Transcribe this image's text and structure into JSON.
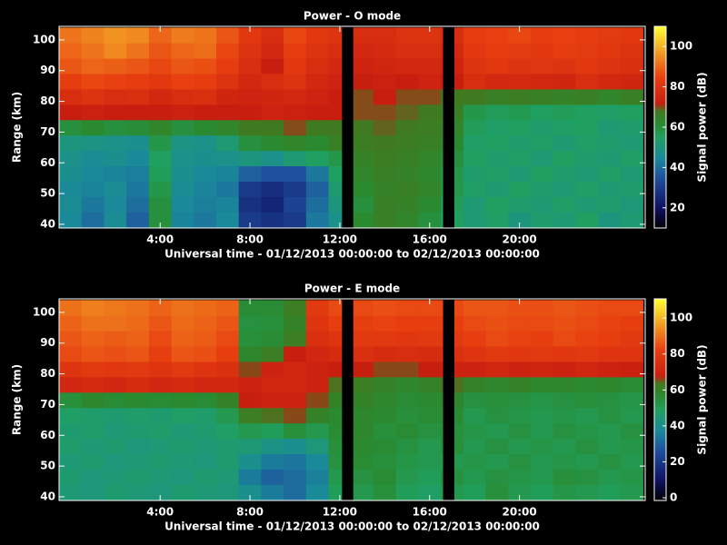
{
  "chart_data": [
    {
      "type": "heatmap",
      "title": "Power - O mode",
      "ylabel": "Range (km)",
      "xlabel": "Universal time - 01/12/2013 00:00:00 to 02/12/2013 00:00:00",
      "zlabel": "Signal power (dB)",
      "xlim": [
        -0.5,
        25.6
      ],
      "ylim": [
        38.8,
        104.4
      ],
      "zlim": [
        10,
        110
      ],
      "xticks": [
        {
          "value": 4,
          "label": "4:00"
        },
        {
          "value": 8,
          "label": "8:00"
        },
        {
          "value": 12,
          "label": "12:00"
        },
        {
          "value": 16,
          "label": "16:00"
        },
        {
          "value": 20,
          "label": "20:00"
        }
      ],
      "yticks": [
        40,
        50,
        60,
        70,
        80,
        90,
        100
      ],
      "zticks": [
        20,
        40,
        60,
        80,
        100
      ],
      "xbins": [
        -0.5,
        0.5,
        1.5,
        2.5,
        3.5,
        4.5,
        5.5,
        6.5,
        7.5,
        8.5,
        9.5,
        10.5,
        11.5,
        12.5,
        13.5,
        14.5,
        15.5,
        16.5,
        17.5,
        18.5,
        19.5,
        20.5,
        21.5,
        22.5,
        23.5,
        24.5,
        25.5
      ],
      "ybins": [
        39,
        44,
        49,
        54,
        59,
        64,
        69,
        74,
        79,
        84,
        89,
        94,
        99,
        104
      ],
      "gaps": [
        [
          12.1,
          12.6
        ],
        [
          16.6,
          17.1
        ]
      ],
      "colormap": [
        {
          "at": 0,
          "color": "#000000"
        },
        {
          "at": 0.1,
          "color": "#101060"
        },
        {
          "at": 0.25,
          "color": "#1f4f9f"
        },
        {
          "at": 0.35,
          "color": "#1a8a9a"
        },
        {
          "at": 0.45,
          "color": "#20a060"
        },
        {
          "at": 0.52,
          "color": "#2a8a30"
        },
        {
          "at": 0.58,
          "color": "#407a20"
        },
        {
          "at": 0.62,
          "color": "#c81e10"
        },
        {
          "at": 0.75,
          "color": "#e84010"
        },
        {
          "at": 0.85,
          "color": "#f08a20"
        },
        {
          "at": 1,
          "color": "#ffff30"
        }
      ],
      "z": [
        [
          45,
          40,
          46,
          38,
          60,
          44,
          42,
          45,
          30,
          28,
          30,
          42,
          48,
          62,
          66,
          64,
          60,
          55,
          52,
          54,
          50,
          53,
          52,
          55,
          50,
          52
        ],
        [
          46,
          42,
          45,
          40,
          60,
          45,
          43,
          44,
          28,
          25,
          32,
          40,
          50,
          60,
          66,
          65,
          62,
          56,
          52,
          55,
          53,
          52,
          54,
          52,
          53,
          51
        ],
        [
          45,
          44,
          46,
          42,
          58,
          46,
          44,
          42,
          30,
          27,
          30,
          38,
          52,
          62,
          65,
          66,
          64,
          58,
          54,
          52,
          55,
          53,
          52,
          54,
          52,
          53
        ],
        [
          47,
          45,
          44,
          43,
          56,
          47,
          45,
          44,
          38,
          35,
          35,
          42,
          55,
          64,
          66,
          65,
          63,
          58,
          53,
          54,
          52,
          55,
          53,
          52,
          54,
          52
        ],
        [
          48,
          46,
          47,
          45,
          55,
          48,
          47,
          48,
          50,
          48,
          52,
          55,
          58,
          65,
          67,
          66,
          64,
          60,
          55,
          53,
          54,
          52,
          55,
          53,
          52,
          54
        ],
        [
          50,
          49,
          48,
          47,
          58,
          49,
          48,
          52,
          60,
          62,
          64,
          62,
          66,
          67,
          68,
          67,
          66,
          62,
          54,
          55,
          53,
          54,
          52,
          54,
          53,
          52
        ],
        [
          60,
          62,
          60,
          61,
          64,
          60,
          62,
          64,
          68,
          68,
          70,
          68,
          68,
          68,
          69,
          68,
          67,
          64,
          56,
          54,
          55,
          53,
          54,
          55,
          52,
          53
        ],
        [
          72,
          73,
          72,
          72,
          72,
          73,
          72,
          72,
          72,
          74,
          73,
          72,
          72,
          70,
          70,
          69,
          68,
          66,
          58,
          56,
          57,
          55,
          56,
          55,
          54,
          55
        ],
        [
          78,
          80,
          78,
          79,
          76,
          78,
          79,
          75,
          74,
          75,
          76,
          74,
          72,
          70,
          72,
          70,
          70,
          68,
          68,
          66,
          67,
          66,
          65,
          66,
          64,
          66
        ],
        [
          84,
          86,
          85,
          84,
          82,
          85,
          84,
          80,
          76,
          78,
          80,
          76,
          74,
          72,
          73,
          72,
          74,
          72,
          78,
          76,
          77,
          76,
          75,
          78,
          76,
          75
        ],
        [
          88,
          90,
          89,
          88,
          86,
          88,
          87,
          84,
          78,
          72,
          82,
          78,
          76,
          74,
          75,
          76,
          76,
          74,
          80,
          82,
          80,
          81,
          80,
          82,
          80,
          79
        ],
        [
          90,
          92,
          95,
          92,
          88,
          90,
          91,
          86,
          80,
          76,
          84,
          80,
          78,
          76,
          77,
          78,
          78,
          76,
          82,
          84,
          83,
          82,
          84,
          83,
          82,
          80
        ],
        [
          92,
          94,
          96,
          95,
          90,
          93,
          92,
          88,
          82,
          78,
          86,
          82,
          80,
          78,
          78,
          80,
          80,
          78,
          84,
          85,
          86,
          84,
          85,
          84,
          83,
          82
        ]
      ]
    },
    {
      "type": "heatmap",
      "title": "Power - E mode",
      "ylabel": "Range (km)",
      "xlabel": "Universal time - 01/12/2013 00:00:00 to 02/12/2013 00:00:00",
      "zlabel": "Signal power (dB)",
      "xlim": [
        -0.5,
        25.6
      ],
      "ylim": [
        38.8,
        104.4
      ],
      "zlim": [
        -1.5,
        110.7
      ],
      "xticks": [
        {
          "value": 4,
          "label": "4:00"
        },
        {
          "value": 8,
          "label": "8:00"
        },
        {
          "value": 12,
          "label": "12:00"
        },
        {
          "value": 16,
          "label": "16:00"
        },
        {
          "value": 20,
          "label": "20:00"
        }
      ],
      "yticks": [
        40,
        50,
        60,
        70,
        80,
        90,
        100
      ],
      "zticks": [
        0,
        20,
        40,
        60,
        80,
        100
      ],
      "xbins": [
        -0.5,
        0.5,
        1.5,
        2.5,
        3.5,
        4.5,
        5.5,
        6.5,
        7.5,
        8.5,
        9.5,
        10.5,
        11.5,
        12.5,
        13.5,
        14.5,
        15.5,
        16.5,
        17.5,
        18.5,
        19.5,
        20.5,
        21.5,
        22.5,
        23.5,
        24.5,
        25.5
      ],
      "ybins": [
        39,
        44,
        49,
        54,
        59,
        64,
        69,
        74,
        79,
        84,
        89,
        94,
        99,
        104
      ],
      "gaps": [
        [
          12.1,
          12.6
        ],
        [
          16.6,
          17.1
        ]
      ],
      "colormap": [
        {
          "at": 0,
          "color": "#000000"
        },
        {
          "at": 0.1,
          "color": "#101060"
        },
        {
          "at": 0.25,
          "color": "#1f4f9f"
        },
        {
          "at": 0.35,
          "color": "#1a8a9a"
        },
        {
          "at": 0.45,
          "color": "#20a060"
        },
        {
          "at": 0.52,
          "color": "#2a8a30"
        },
        {
          "at": 0.58,
          "color": "#407a20"
        },
        {
          "at": 0.62,
          "color": "#c81e10"
        },
        {
          "at": 0.75,
          "color": "#e84010"
        },
        {
          "at": 0.85,
          "color": "#f08a20"
        },
        {
          "at": 1,
          "color": "#ffff30"
        }
      ],
      "z": [
        [
          45,
          44,
          46,
          45,
          44,
          46,
          45,
          44,
          40,
          35,
          32,
          38,
          50,
          52,
          55,
          50,
          48,
          52,
          50,
          55,
          52,
          50,
          53,
          52,
          50,
          52
        ],
        [
          46,
          44,
          45,
          46,
          45,
          44,
          46,
          45,
          35,
          30,
          32,
          36,
          52,
          54,
          56,
          52,
          50,
          54,
          52,
          54,
          53,
          52,
          55,
          54,
          52,
          53
        ],
        [
          45,
          46,
          44,
          45,
          46,
          45,
          44,
          46,
          40,
          35,
          34,
          38,
          54,
          56,
          55,
          53,
          52,
          52,
          53,
          52,
          54,
          52,
          53,
          52,
          54,
          52
        ],
        [
          47,
          45,
          46,
          44,
          45,
          46,
          45,
          46,
          45,
          42,
          40,
          44,
          55,
          57,
          56,
          54,
          52,
          55,
          52,
          54,
          52,
          53,
          52,
          54,
          52,
          53
        ],
        [
          46,
          47,
          45,
          46,
          47,
          45,
          46,
          48,
          52,
          50,
          55,
          52,
          56,
          58,
          55,
          56,
          54,
          55,
          53,
          52,
          54,
          52,
          54,
          53,
          52,
          54
        ],
        [
          48,
          47,
          46,
          47,
          46,
          48,
          47,
          52,
          62,
          64,
          66,
          60,
          57,
          58,
          57,
          55,
          56,
          56,
          52,
          54,
          53,
          52,
          53,
          52,
          54,
          52
        ],
        [
          55,
          58,
          56,
          57,
          56,
          57,
          56,
          60,
          68,
          70,
          70,
          66,
          60,
          60,
          58,
          56,
          57,
          58,
          54,
          55,
          54,
          53,
          54,
          55,
          54,
          53
        ],
        [
          72,
          73,
          72,
          74,
          72,
          73,
          72,
          72,
          70,
          72,
          72,
          70,
          64,
          62,
          60,
          58,
          60,
          64,
          60,
          58,
          60,
          58,
          58,
          57,
          58,
          56
        ],
        [
          78,
          80,
          79,
          80,
          78,
          80,
          78,
          76,
          66,
          70,
          72,
          70,
          68,
          68,
          66,
          66,
          68,
          70,
          70,
          72,
          70,
          71,
          70,
          72,
          70,
          69
        ],
        [
          84,
          86,
          85,
          86,
          82,
          86,
          85,
          82,
          58,
          62,
          68,
          72,
          74,
          76,
          74,
          75,
          74,
          76,
          78,
          80,
          79,
          80,
          79,
          80,
          78,
          78
        ],
        [
          86,
          88,
          87,
          88,
          84,
          88,
          87,
          84,
          55,
          56,
          62,
          76,
          78,
          80,
          80,
          79,
          80,
          80,
          82,
          84,
          83,
          82,
          84,
          83,
          82,
          80
        ],
        [
          88,
          90,
          90,
          89,
          86,
          89,
          88,
          86,
          54,
          55,
          60,
          78,
          82,
          82,
          83,
          82,
          82,
          82,
          84,
          85,
          84,
          84,
          85,
          84,
          83,
          82
        ],
        [
          90,
          92,
          91,
          90,
          88,
          90,
          89,
          88,
          56,
          56,
          62,
          80,
          84,
          84,
          85,
          84,
          84,
          84,
          86,
          86,
          85,
          85,
          86,
          85,
          84,
          84
        ]
      ]
    }
  ]
}
